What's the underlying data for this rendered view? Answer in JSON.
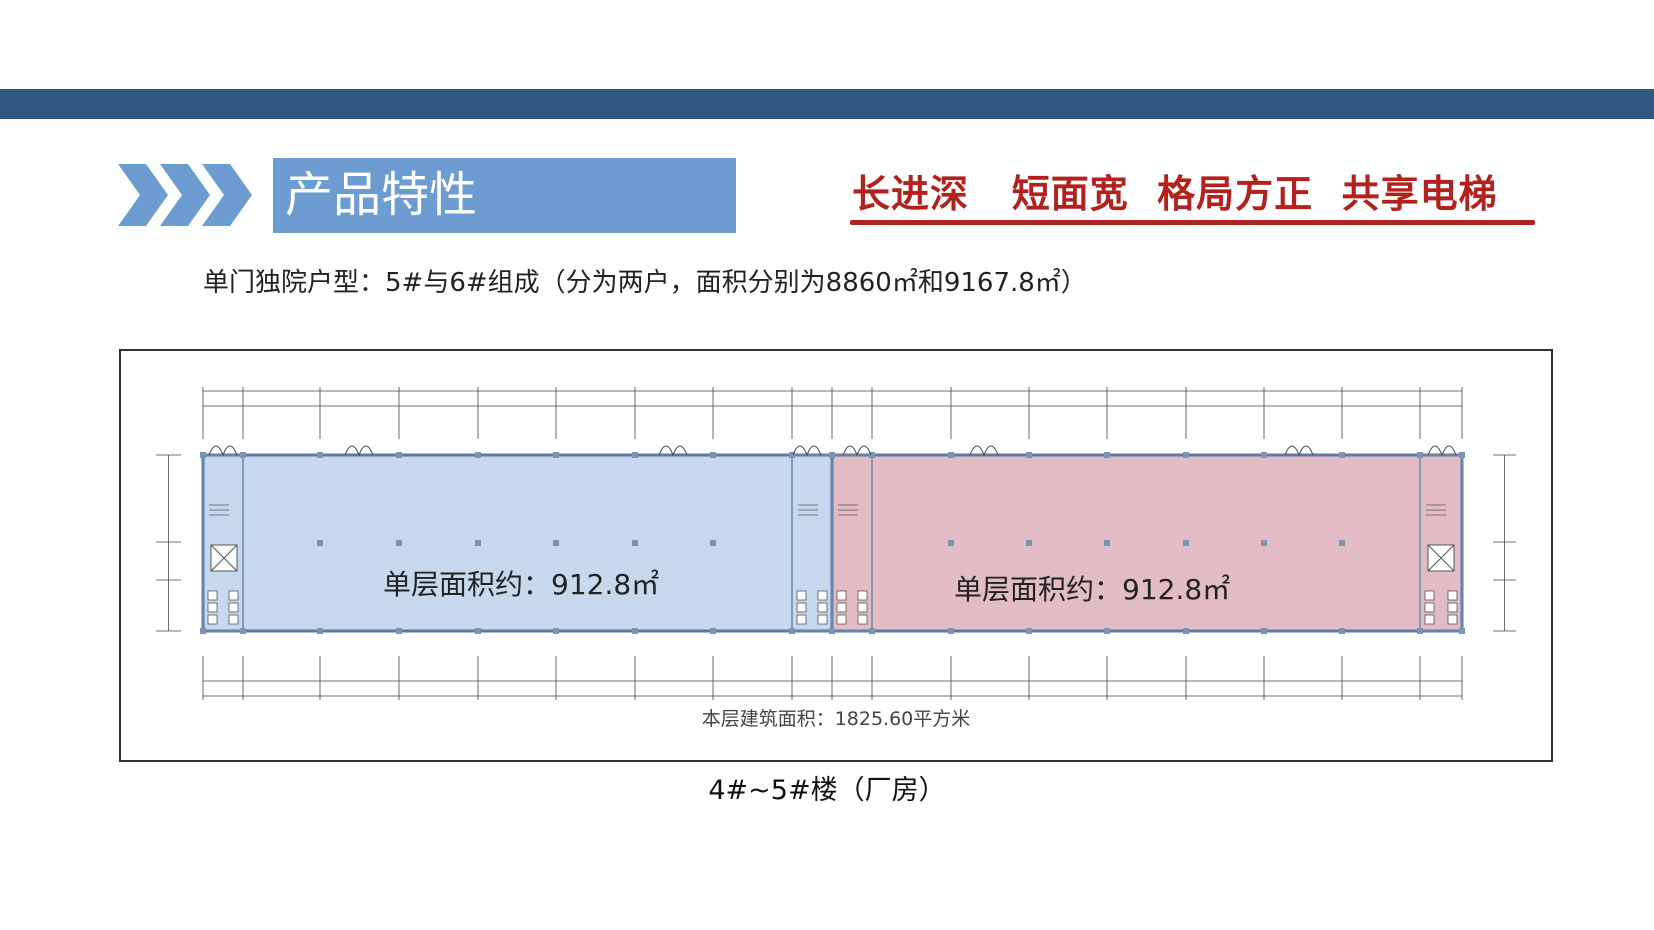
{
  "header": {
    "title": "产品特性",
    "icon": "triple-chevron-icon"
  },
  "slogan": {
    "text": "长进深   短面宽  格局方正  共享电梯"
  },
  "subtitle": "单门独院户型：5#与6#组成（分为两户，面积分别为8860㎡和9167.8㎡）",
  "floorplan": {
    "unit_left_area": "单层面积约：912.8㎡",
    "unit_right_area": "单层面积约：912.8㎡",
    "total_area": "本层建筑面积：1825.60平方米",
    "colors": {
      "left_unit": "#c5d8ee",
      "right_unit": "#e2bcc4",
      "wall": "#5a7aa8"
    }
  },
  "caption": "4#~5#楼（厂房）",
  "colors": {
    "top_bar": "#30577f",
    "title_box": "#6c9cd0",
    "slogan": "#b1221f"
  }
}
